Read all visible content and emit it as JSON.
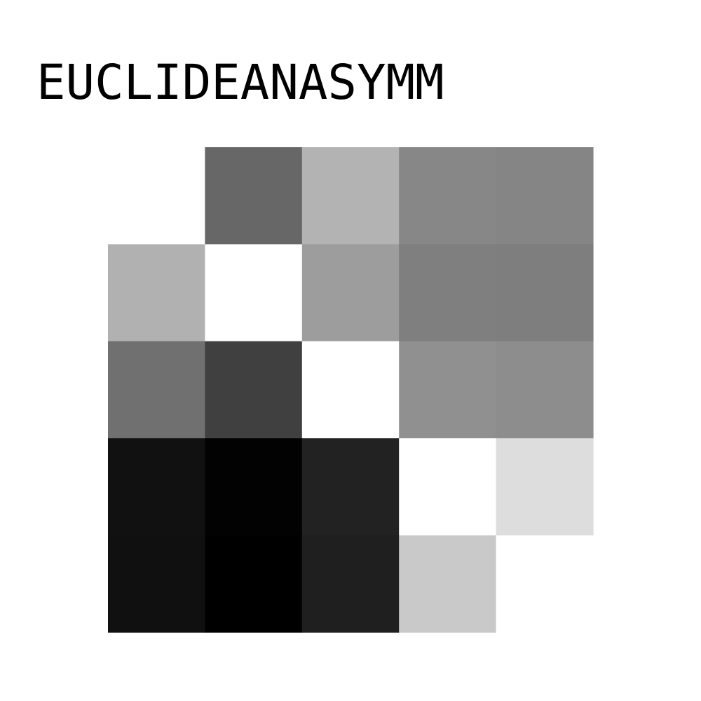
{
  "chart_data": {
    "type": "heatmap",
    "title": "EUCLIDEANASYMM",
    "rows": 5,
    "cols": 5,
    "colormap": "grayscale",
    "grayscale_levels": [
      [
        255,
        103,
        179,
        135,
        133
      ],
      [
        177,
        255,
        157,
        127,
        126
      ],
      [
        112,
        64,
        255,
        144,
        141
      ],
      [
        17,
        2,
        34,
        255,
        221
      ],
      [
        16,
        0,
        31,
        201,
        255
      ]
    ]
  }
}
